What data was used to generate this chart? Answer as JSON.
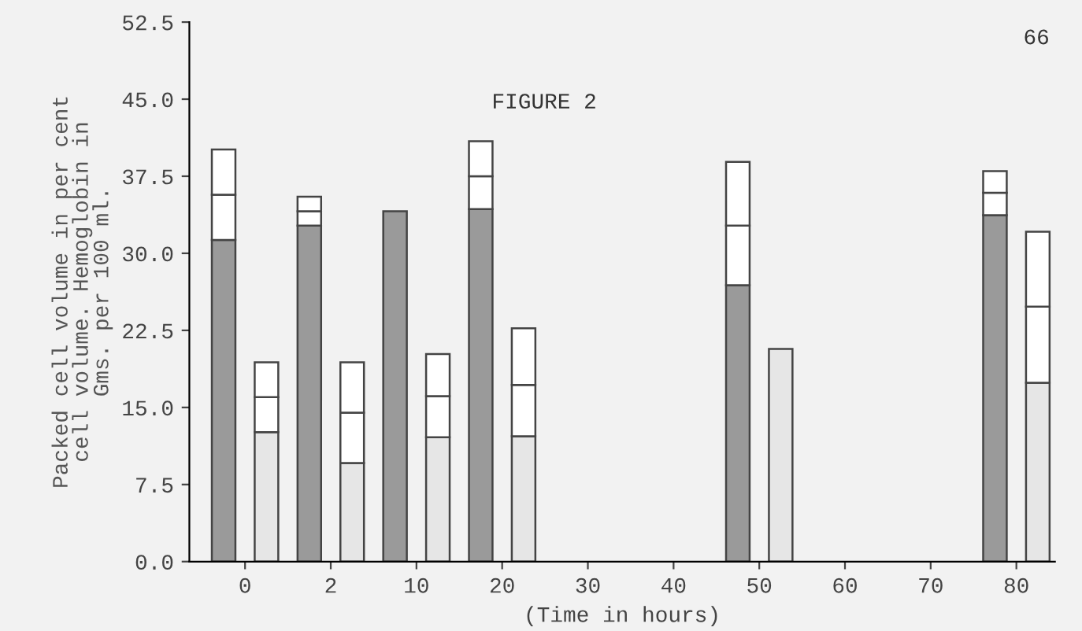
{
  "chart_data": {
    "type": "bar",
    "title": "FIGURE 2",
    "xlabel": "(Time in hours)",
    "ylabel": "Packed cell volume in per cent\ncell volume. Hemoglobin in\nGms. per 100 ml.",
    "annotations": [
      "66"
    ],
    "categories": [
      "0",
      null,
      "2",
      null,
      "10",
      null,
      "20",
      null,
      "30",
      null,
      "40",
      null,
      "50",
      null,
      "60",
      null,
      "70",
      null,
      "80",
      null
    ],
    "series": [
      {
        "colors": [
          "#9a9a9a",
          "#e6e6e6",
          "#9a9a9a",
          "#e6e6e6",
          "#9a9a9a",
          "#e6e6e6",
          "#9a9a9a",
          "#e6e6e6",
          "#9a9a9a",
          "#e6e6e6",
          "#9a9a9a",
          "#e6e6e6",
          "#9a9a9a",
          "#e6e6e6",
          "#9a9a9a",
          "#e6e6e6",
          "#9a9a9a",
          "#e6e6e6",
          "#9a9a9a",
          "#e6e6e6"
        ],
        "values": [
          31.3,
          12.6,
          32.7,
          9.6,
          34.1,
          12.1,
          34.3,
          12.2,
          null,
          null,
          null,
          null,
          26.9,
          20.7,
          null,
          null,
          null,
          null,
          33.7,
          17.4
        ]
      },
      {
        "color": "#ffffff",
        "values": [
          4.4,
          3.4,
          1.4,
          4.9,
          null,
          4.0,
          3.2,
          5.0,
          null,
          null,
          null,
          null,
          5.8,
          null,
          null,
          null,
          null,
          null,
          2.2,
          7.4
        ]
      },
      {
        "color": "#ffffff",
        "values": [
          4.4,
          3.4,
          1.4,
          4.9,
          null,
          4.1,
          3.4,
          5.5,
          null,
          null,
          null,
          null,
          6.2,
          null,
          null,
          null,
          null,
          null,
          2.1,
          7.3
        ]
      }
    ],
    "ylim": [
      0,
      52.5
    ],
    "yticks": [
      {
        "value": 0,
        "label": "0.0"
      },
      {
        "value": 7.5,
        "label": "7.5"
      },
      {
        "value": 15,
        "label": "15.0"
      },
      {
        "value": 22.5,
        "label": "22.5"
      },
      {
        "value": 30,
        "label": "30.0"
      },
      {
        "value": 37.5,
        "label": "37.5"
      },
      {
        "value": 45,
        "label": "45.0"
      },
      {
        "value": 52.5,
        "label": "52.5"
      }
    ],
    "stacked": true,
    "grid": false,
    "legend": false
  }
}
